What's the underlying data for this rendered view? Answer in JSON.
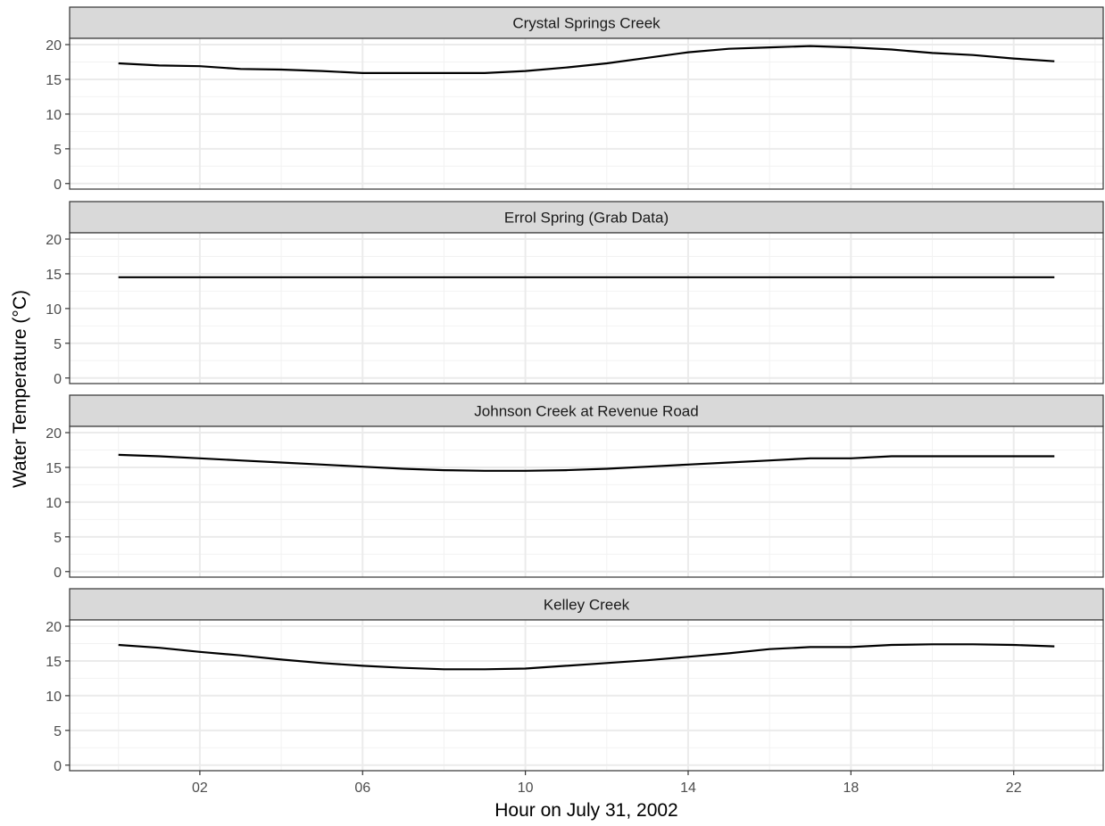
{
  "chart_data": {
    "type": "line",
    "layout": "faceted",
    "xlabel": "Hour on July 31, 2002",
    "ylabel": "Water Temperature (°C)",
    "xlim": [
      -1.2,
      24.2
    ],
    "ylim": [
      -0.8,
      20.9
    ],
    "x_ticks": [
      2,
      6,
      10,
      14,
      18,
      22
    ],
    "x_tick_labels": [
      "02",
      "06",
      "10",
      "14",
      "18",
      "22"
    ],
    "y_ticks": [
      0,
      5,
      10,
      15,
      20
    ],
    "y_tick_labels": [
      "0",
      "5",
      "10",
      "15",
      "20"
    ],
    "grid": true,
    "line_color": "#000000",
    "strip_fill": "#d9d9d9",
    "panel_border": "#333333",
    "x": [
      0,
      1,
      2,
      3,
      4,
      5,
      6,
      7,
      8,
      9,
      10,
      11,
      12,
      13,
      14,
      15,
      16,
      17,
      18,
      19,
      20,
      21,
      22,
      23
    ],
    "panels": [
      {
        "title": "Crystal Springs Creek",
        "values": [
          17.3,
          17.0,
          16.9,
          16.5,
          16.4,
          16.2,
          15.9,
          15.9,
          15.9,
          15.9,
          16.2,
          16.7,
          17.3,
          18.1,
          18.9,
          19.4,
          19.6,
          19.8,
          19.6,
          19.3,
          18.8,
          18.5,
          18.0,
          17.6
        ]
      },
      {
        "title": "Errol Spring (Grab Data)",
        "values": [
          14.5,
          14.5,
          14.5,
          14.5,
          14.5,
          14.5,
          14.5,
          14.5,
          14.5,
          14.5,
          14.5,
          14.5,
          14.5,
          14.5,
          14.5,
          14.5,
          14.5,
          14.5,
          14.5,
          14.5,
          14.5,
          14.5,
          14.5,
          14.5
        ]
      },
      {
        "title": "Johnson Creek at Revenue Road",
        "values": [
          16.8,
          16.6,
          16.3,
          16.0,
          15.7,
          15.4,
          15.1,
          14.8,
          14.6,
          14.5,
          14.5,
          14.6,
          14.8,
          15.1,
          15.4,
          15.7,
          16.0,
          16.3,
          16.3,
          16.6,
          16.6,
          16.6,
          16.6,
          16.6
        ]
      },
      {
        "title": "Kelley Creek",
        "values": [
          17.3,
          16.9,
          16.3,
          15.8,
          15.2,
          14.7,
          14.3,
          14.0,
          13.8,
          13.8,
          13.9,
          14.3,
          14.7,
          15.1,
          15.6,
          16.1,
          16.7,
          17.0,
          17.0,
          17.3,
          17.4,
          17.4,
          17.3,
          17.1
        ]
      }
    ]
  }
}
